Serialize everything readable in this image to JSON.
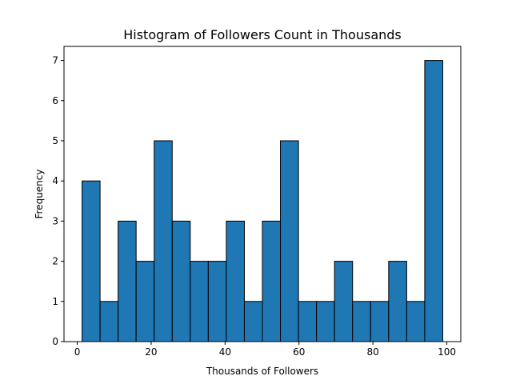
{
  "chart_data": {
    "type": "bar",
    "title": "Histogram of Followers Count in Thousands",
    "xlabel": "Thousands of Followers",
    "ylabel": "Frequency",
    "bin_edges": [
      1.3,
      6.18,
      11.06,
      15.94,
      20.82,
      25.7,
      30.58,
      35.46,
      40.34,
      45.22,
      50.1,
      54.98,
      59.86,
      64.74,
      69.62,
      74.5,
      79.38,
      84.26,
      89.14,
      94.02,
      98.9
    ],
    "values": [
      4,
      1,
      3,
      2,
      5,
      3,
      2,
      2,
      3,
      1,
      3,
      5,
      1,
      1,
      2,
      1,
      1,
      2,
      1,
      7
    ],
    "xlim": [
      -3.58,
      103.78
    ],
    "ylim": [
      0,
      7.35
    ],
    "xticks": [
      0,
      20,
      40,
      60,
      80,
      100
    ],
    "yticks": [
      0,
      1,
      2,
      3,
      4,
      5,
      6,
      7
    ],
    "grid": false,
    "colors": {
      "bar_fill": "#1f77b4",
      "bar_edge": "#000000"
    }
  }
}
